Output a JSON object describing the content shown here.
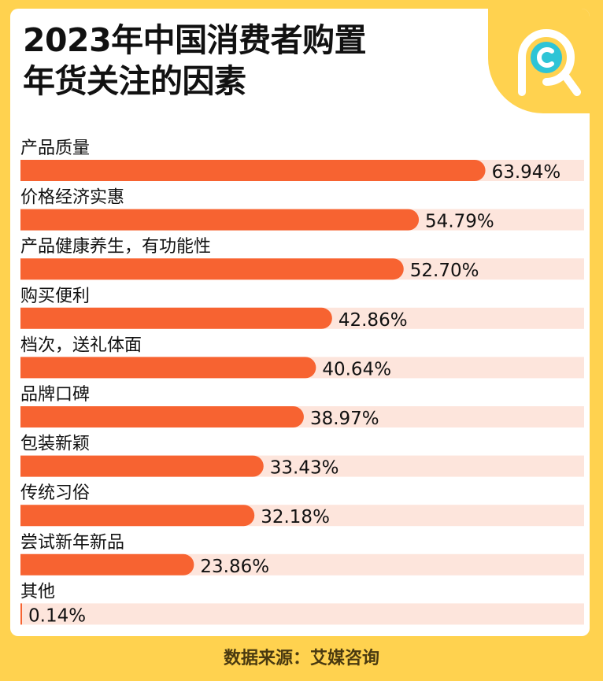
{
  "title_line1": "2023年中国消费者购置",
  "title_line2": "年货关注的因素",
  "source": "数据来源：艾媒咨询",
  "colors": {
    "background": "#FFD24F",
    "bar": "#F76331",
    "track": "#FDE5DC",
    "card": "#FFFFFF",
    "logo_accent": "#2EC4D6"
  },
  "chart_data": {
    "type": "bar",
    "orientation": "horizontal",
    "title": "2023年中国消费者购置年货关注的因素",
    "categories": [
      "产品质量",
      "价格经济实惠",
      "产品健康养生，有功能性",
      "购买便利",
      "档次，送礼体面",
      "品牌口碑",
      "包装新颖",
      "传统习俗",
      "尝试新年新品",
      "其他"
    ],
    "values": [
      63.94,
      54.79,
      52.7,
      42.86,
      40.64,
      38.97,
      33.43,
      32.18,
      23.86,
      0.14
    ],
    "value_labels": [
      "63.94%",
      "54.79%",
      "52.70%",
      "42.86%",
      "40.64%",
      "38.97%",
      "33.43%",
      "32.18%",
      "23.86%",
      "0.14%"
    ],
    "unit": "%",
    "xlim": [
      0,
      100
    ],
    "grid": false,
    "legend": "none"
  }
}
